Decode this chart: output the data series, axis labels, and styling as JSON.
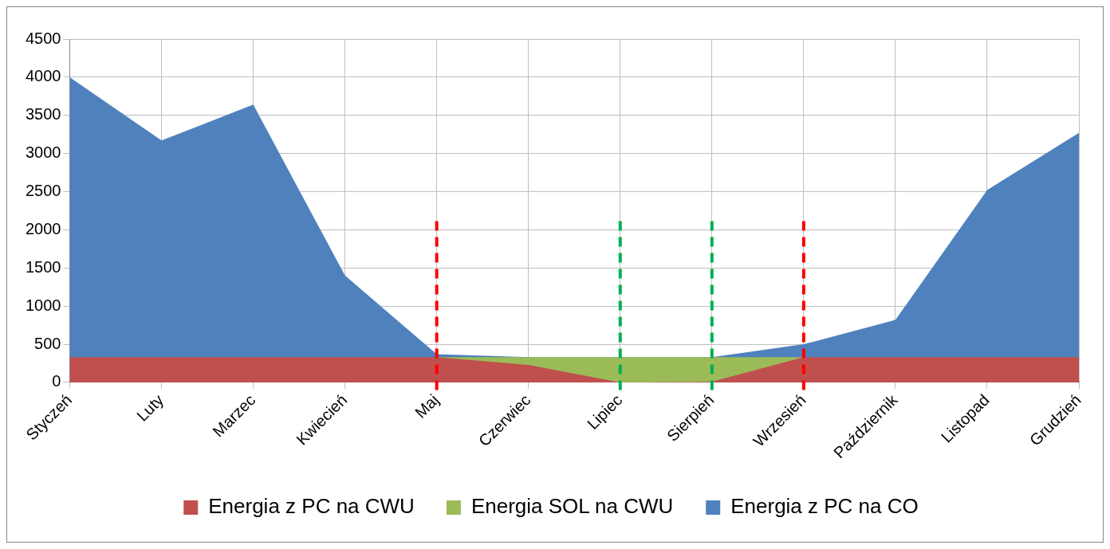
{
  "chart_data": {
    "type": "area",
    "stacked": true,
    "categories": [
      "Styczeń",
      "Luty",
      "Marzec",
      "Kwiecień",
      "Maj",
      "Czerwiec",
      "Lipiec",
      "Sierpień",
      "Wrzesień",
      "Październik",
      "Listopad",
      "Grudzień"
    ],
    "series": [
      {
        "name": "Energia z PC na CWU",
        "color": "#c0504d",
        "values": [
          330,
          330,
          330,
          330,
          330,
          230,
          0,
          10,
          330,
          330,
          330,
          330
        ]
      },
      {
        "name": "Energia SOL na CWU",
        "color": "#9bbb59",
        "values": [
          null,
          null,
          null,
          null,
          0,
          100,
          330,
          320,
          0,
          null,
          null,
          null
        ]
      },
      {
        "name": "Energia z PC na CO",
        "color": "#4f81bd",
        "values": [
          3670,
          2840,
          3310,
          1070,
          40,
          0,
          0,
          0,
          170,
          490,
          2190,
          2940
        ]
      }
    ],
    "ylim": [
      0,
      4500
    ],
    "yticks": [
      0,
      500,
      1000,
      1500,
      2000,
      2500,
      3000,
      3500,
      4000,
      4500
    ],
    "grid": true,
    "legend": "bottom",
    "ref_lines": [
      {
        "axis": "x",
        "value": "Maj",
        "color": "#ff0000",
        "line_style": "dashed"
      },
      {
        "axis": "x",
        "value": "Lipiec",
        "color": "#00b050",
        "line_style": "dashed"
      },
      {
        "axis": "x",
        "value": "Sierpień",
        "color": "#00b050",
        "line_style": "dashed"
      },
      {
        "axis": "x",
        "value": "Wrzesień",
        "color": "#ff0000",
        "line_style": "dashed"
      }
    ]
  }
}
